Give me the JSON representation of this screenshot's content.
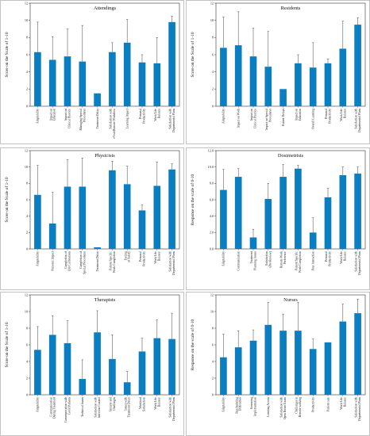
{
  "chart_data": [
    {
      "type": "bar",
      "title": "Attendings",
      "ylabel": "Score on the Scale of 1-10",
      "ylim": [
        0,
        12
      ],
      "yticks": [
        0,
        2,
        4,
        6,
        8,
        10,
        12
      ],
      "categories": [
        "Adaptability",
        "Impact on Education",
        "Impact on Clinical Practice",
        "Managing Special Procedures",
        "Treatment Delay",
        "Satisfaction with eVisit/Remote Workflow",
        "Learning Impact",
        "Personal Productivity",
        "Work/Life Balance",
        "Satisfaction with Departmental Plans"
      ],
      "values": [
        6.3,
        5.4,
        5.8,
        5.2,
        1.5,
        6.3,
        7.4,
        5.1,
        5.0,
        9.8
      ],
      "errors": [
        3.5,
        2.7,
        3.2,
        4.2,
        0.0,
        1.1,
        2.7,
        0.9,
        3.0,
        0.7
      ],
      "grid": false,
      "color": "#0b7dc1"
    },
    {
      "type": "bar",
      "title": "Residents",
      "ylabel": "Score on the Scale of 1-10",
      "ylim": [
        0,
        12
      ],
      "yticks": [
        0,
        2,
        4,
        6,
        8,
        10,
        12
      ],
      "categories": [
        "Adaptability",
        "Impact on Work",
        "Impact on Clinical Practice",
        "Impact on Special Procedures",
        "Patient Delays",
        "Impact on Education",
        "Overall Learning",
        "Personal Productivity",
        "Work/Life Balance",
        "Satisfaction with Departmental Plans"
      ],
      "values": [
        6.8,
        7.1,
        5.8,
        4.6,
        2.0,
        5.0,
        4.5,
        5.0,
        6.7,
        9.5
      ],
      "errors": [
        3.6,
        3.9,
        3.3,
        4.1,
        0.0,
        1.0,
        2.9,
        0.5,
        3.2,
        0.8
      ],
      "grid": false,
      "color": "#0b7dc1"
    },
    {
      "type": "bar",
      "title": "Physicists",
      "ylabel": "Score on the Scale of 1-10",
      "ylim": [
        0,
        12
      ],
      "yticks": [
        0,
        2,
        4,
        6,
        8,
        10,
        12
      ],
      "categories": [
        "Adaptability",
        "Personal Impact",
        "Completion of QA/Calibrations",
        "Completion of Special Procedures",
        "Treatment Delay",
        "Patient Specific Work Completion",
        "Feeling of Safety",
        "Personal Productivity",
        "Work/Life Balance",
        "Satisfaction with Departmental Plans"
      ],
      "values": [
        6.6,
        3.1,
        7.6,
        7.6,
        0.2,
        9.6,
        7.9,
        4.7,
        7.7,
        9.7
      ],
      "errors": [
        3.6,
        3.8,
        3.3,
        3.5,
        0.0,
        1.1,
        2.2,
        0.7,
        2.9,
        0.7
      ],
      "grid": false,
      "color": "#0b7dc1"
    },
    {
      "type": "bar",
      "title": "Dosimetrists",
      "ylabel": "Response on the scale of 0-10",
      "ylim": [
        0,
        12
      ],
      "yticks": [
        "0.0",
        "2.0",
        "4.0",
        "6.0",
        "8.0",
        "10.0",
        "12.0"
      ],
      "categories": [
        "Adaptability",
        "Communication",
        "Treatment Planning Issues",
        "Satisfaction (Pre-Review)",
        "Remote Work Preference",
        "Patient Specific Work Completion",
        "Peer Interaction",
        "Personal Productivity",
        "Work/Life Balance",
        "Satisfaction with Departmental Plans"
      ],
      "values": [
        7.2,
        8.8,
        1.4,
        6.1,
        8.8,
        9.8,
        2.0,
        6.3,
        9.0,
        9.2
      ],
      "errors": [
        2.5,
        1.0,
        1.0,
        1.9,
        1.5,
        0.4,
        1.8,
        1.1,
        1.0,
        0.8
      ],
      "grid": false,
      "color": "#0b7dc1"
    },
    {
      "type": "bar",
      "title": "Therapists",
      "ylabel": "Score on the Scale of 1-10",
      "ylim": [
        0,
        12
      ],
      "yticks": [
        0,
        2,
        4,
        6,
        8,
        10,
        12
      ],
      "categories": [
        "Adaptability",
        "Communication During Treatment",
        "Communication with Covid Patients",
        "Technical Issues",
        "Satisfaction with Infection Control",
        "Anxiety and Challenges",
        "Issues with Treatment Delay",
        "Workload Satisfaction",
        "Work/Life Balance",
        "Satisfaction with Departmental Plans"
      ],
      "values": [
        5.4,
        7.2,
        6.2,
        1.9,
        7.5,
        4.3,
        1.5,
        5.2,
        6.8,
        6.7
      ],
      "errors": [
        2.8,
        2.3,
        2.7,
        2.3,
        2.6,
        2.9,
        1.3,
        1.6,
        2.2,
        3.1
      ],
      "grid": false,
      "color": "#0b7dc1"
    },
    {
      "type": "bar",
      "title": "Nurses",
      "ylabel": "Response on the scale of 0-10",
      "ylim": [
        0,
        12
      ],
      "yticks": [
        0,
        2,
        4,
        6,
        8,
        10,
        12
      ],
      "categories": [
        "Adaptability",
        "Rescheduling Difficulties",
        "Screening Implementation",
        "Limiting Access",
        "Satisfaction with Open Room Exam",
        "Challenges in Remote working",
        "Productivity",
        "Patient care",
        "Work/Life Balance",
        "Satisfaction with Departmental Plans"
      ],
      "values": [
        4.5,
        5.7,
        6.5,
        8.4,
        7.7,
        7.7,
        5.5,
        6.3,
        8.8,
        9.8
      ],
      "errors": [
        2.8,
        2.0,
        1.3,
        2.7,
        2.0,
        3.4,
        1.2,
        0.0,
        2.1,
        1.7
      ],
      "grid": false,
      "color": "#0b7dc1"
    }
  ]
}
